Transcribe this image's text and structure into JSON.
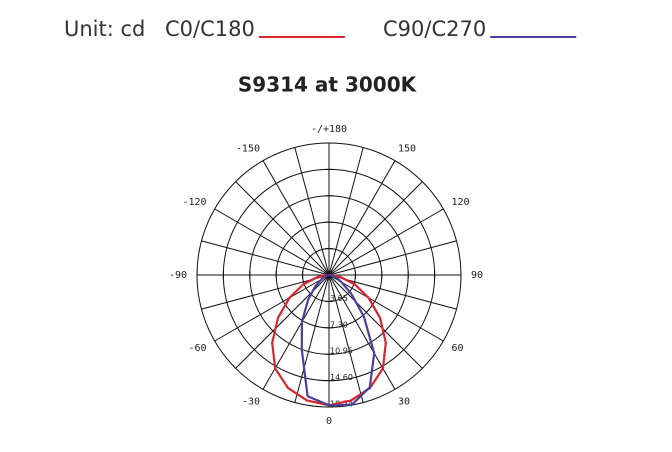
{
  "chart_data": {
    "type": "polar",
    "unit": "Unit: cd",
    "title": "S9314 at 3000K",
    "angles": [
      -90,
      -80,
      -70,
      -60,
      -50,
      -40,
      -30,
      -20,
      -10,
      0,
      10,
      20,
      30,
      40,
      50,
      60,
      70,
      80,
      90
    ],
    "series": [
      {
        "name": "C0/C180",
        "color": "#d9262e",
        "values": [
          0.3,
          1.6,
          3.8,
          6.3,
          9.2,
          12.2,
          14.9,
          16.6,
          17.6,
          18.0,
          17.6,
          16.6,
          14.9,
          12.2,
          9.2,
          6.3,
          3.8,
          1.6,
          0.3
        ]
      },
      {
        "name": "C90/C270",
        "color": "#4b3f9a",
        "values": [
          0,
          0.2,
          0.5,
          1.2,
          2.5,
          4.5,
          7.5,
          11.0,
          17.0,
          18.0,
          18.2,
          16.5,
          12.5,
          7.5,
          4.0,
          2.0,
          1.0,
          0.4,
          0
        ]
      }
    ],
    "rlim": [
      0,
      18.24
    ],
    "rticks": [
      3.65,
      {
        "value": 7.3,
        "label": "7.30"
      },
      10.95,
      {
        "value": 14.6,
        "label": "14.60"
      },
      18.24
    ],
    "angle_ticks": [
      {
        "value": 180,
        "label": "-/+180"
      },
      150,
      120,
      90,
      60,
      30,
      0,
      -30,
      -60,
      -90,
      -120,
      -150
    ],
    "grid": true
  }
}
